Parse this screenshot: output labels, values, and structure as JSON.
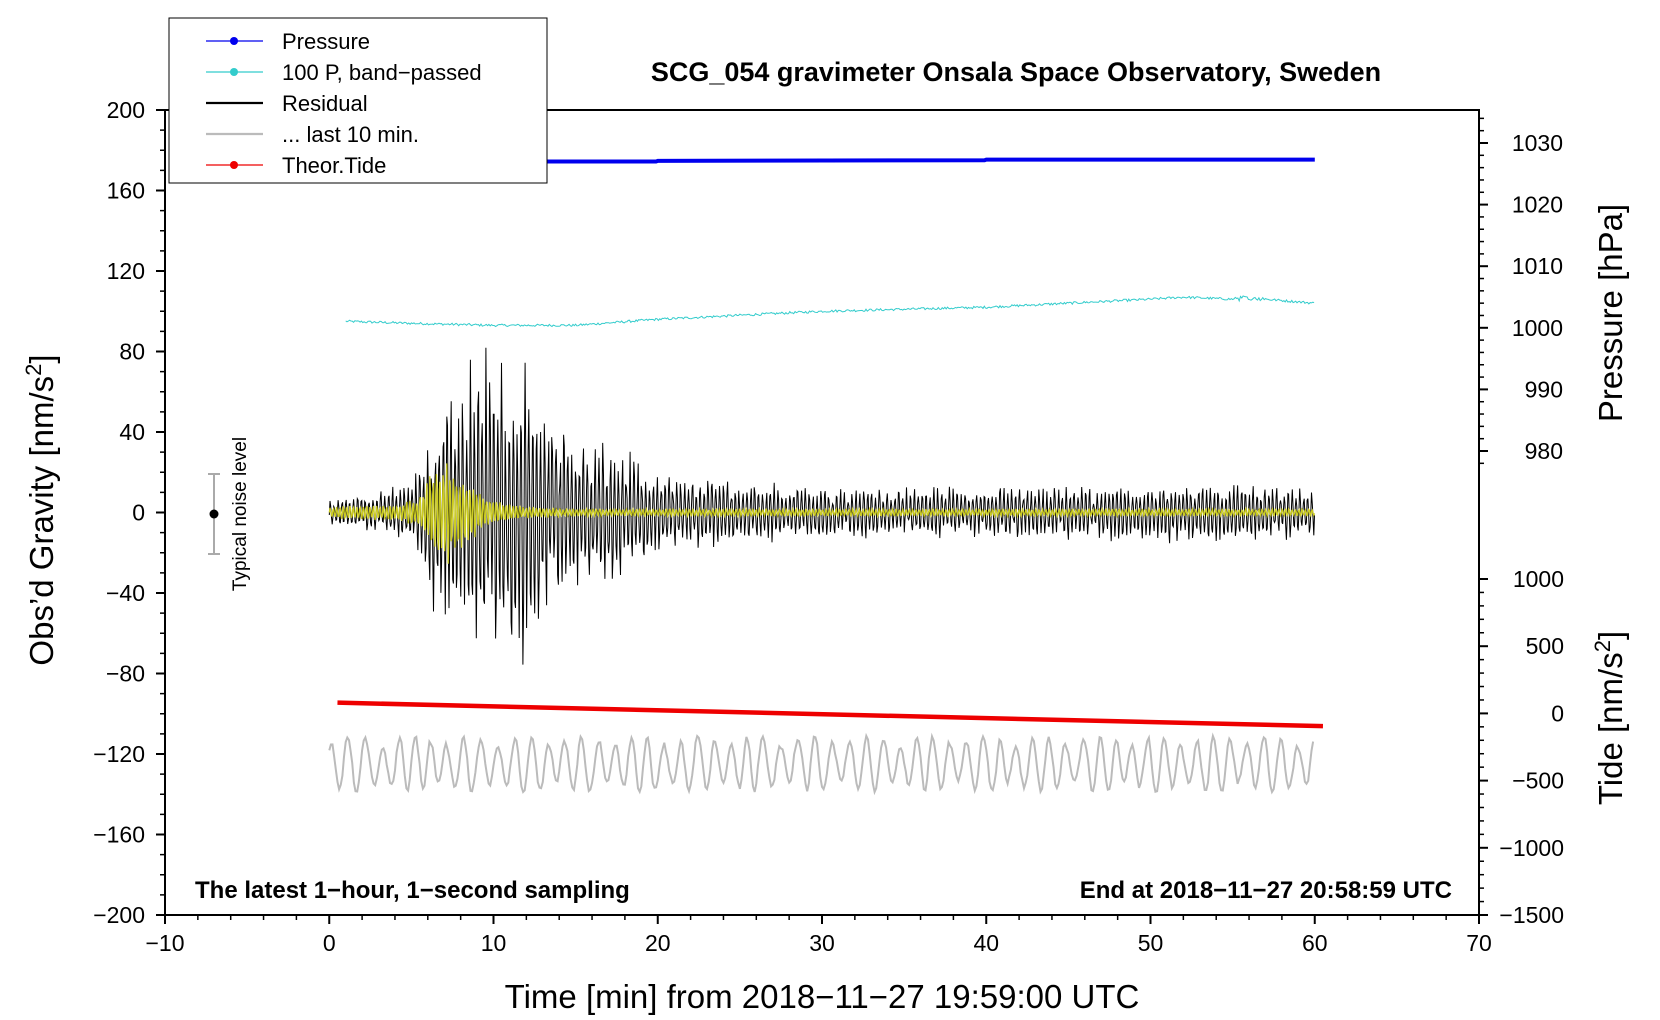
{
  "chart_data": {
    "type": "line",
    "title": "SCG_054 gravimeter Onsala Space Observatory, Sweden",
    "xlabel": "Time [min] from 2018−11−27 19:59:00 UTC",
    "ylabel_main": "Obs’d Gravity [nm/s",
    "ylabel_main_sup": "2",
    "ylabel_main_end": "]",
    "ylabel_pressure": "Pressure [hPa]",
    "ylabel_tide": "Tide [nm/s",
    "ylabel_tide_sup": "2",
    "ylabel_tide_end": "]",
    "xlim": [
      -10,
      70
    ],
    "ylim": [
      -200,
      200
    ],
    "pressure_lim": [
      980,
      1030
    ],
    "tide_lim": [
      -1500,
      1000
    ],
    "x_ticks": [
      -10,
      0,
      10,
      20,
      30,
      40,
      50,
      60,
      70
    ],
    "x_tick_labels": [
      "−10",
      "0",
      "10",
      "20",
      "30",
      "40",
      "50",
      "60",
      "70"
    ],
    "y_ticks": [
      -200,
      -160,
      -120,
      -80,
      -40,
      0,
      40,
      80,
      120,
      160,
      200
    ],
    "y_tick_labels": [
      "−200",
      "−160",
      "−120",
      "−80",
      "−40",
      "0",
      "40",
      "80",
      "120",
      "160",
      "200"
    ],
    "pressure_ticks": [
      980,
      990,
      1000,
      1010,
      1020,
      1030
    ],
    "pressure_tick_labels": [
      "980",
      "990",
      "1000",
      "1010",
      "1020",
      "1030"
    ],
    "tide_ticks": [
      -1500,
      -1000,
      -500,
      0,
      500,
      1000
    ],
    "tide_tick_labels": [
      "−1500",
      "−1000",
      "−500",
      "0",
      "500",
      "1000"
    ],
    "legend": [
      {
        "label": "Pressure",
        "color": "#0000ee",
        "marker": true
      },
      {
        "label": "100 P, band−passed",
        "color": "#33cccc",
        "marker": true
      },
      {
        "label": "Residual",
        "color": "#000000",
        "marker": false
      },
      {
        "label": "... last 10 min.",
        "color": "#bbbbbb",
        "marker": false
      },
      {
        "label": "Theor.Tide",
        "color": "#ee0000",
        "marker": true
      }
    ],
    "legend_position": "top-left",
    "annotation_left": "The latest 1−hour, 1−second sampling",
    "annotation_right": "End at 2018−11−27 20:58:59 UTC",
    "noise_label": "Typical noise level",
    "noise_bar": {
      "x": -7,
      "center": 0,
      "half_range": 20
    },
    "series": [
      {
        "name": "Pressure",
        "axis": "pressure",
        "color": "#0000ee",
        "x": [
          0,
          10,
          19.9,
          20,
          39.9,
          40,
          60
        ],
        "values": [
          1027.0,
          1027.0,
          1027.0,
          1027.1,
          1027.2,
          1027.3,
          1027.3
        ]
      },
      {
        "name": "100 P, band-passed",
        "axis": "main",
        "color": "#33cccc",
        "x": [
          1,
          5,
          10,
          15,
          20,
          25,
          30,
          35,
          40,
          45,
          50,
          52,
          55,
          57,
          60
        ],
        "values": [
          95,
          94,
          93,
          93,
          96,
          98,
          100,
          101,
          102,
          104,
          106,
          107,
          106,
          106,
          104
        ]
      },
      {
        "name": "Residual",
        "axis": "main",
        "color": "#000000",
        "envelope_x": [
          0,
          3,
          5,
          6,
          7,
          8,
          9,
          10,
          11,
          12,
          13,
          14,
          15,
          16,
          18,
          20,
          22,
          25,
          30,
          40,
          50,
          55,
          60
        ],
        "envelope_amp": [
          8,
          10,
          15,
          35,
          65,
          55,
          75,
          80,
          72,
          80,
          60,
          45,
          35,
          42,
          30,
          22,
          18,
          15,
          12,
          12,
          14,
          14,
          12
        ]
      },
      {
        "name": "Band-passed residual",
        "axis": "main",
        "color": "#cccc22",
        "envelope_x": [
          0,
          4,
          5.5,
          6,
          7,
          8,
          9,
          10,
          12,
          15,
          60
        ],
        "envelope_amp": [
          3,
          4,
          8,
          18,
          28,
          18,
          12,
          6,
          3,
          2,
          2
        ]
      },
      {
        "name": "... last 10 min.",
        "axis": "main",
        "color": "#bbbbbb",
        "x_range": [
          0,
          60
        ],
        "center": -125,
        "amp": 14
      },
      {
        "name": "Theor.Tide",
        "axis": "tide",
        "color": "#ee0000",
        "x": [
          0.5,
          60.5
        ],
        "values": [
          80,
          -95
        ]
      }
    ]
  }
}
